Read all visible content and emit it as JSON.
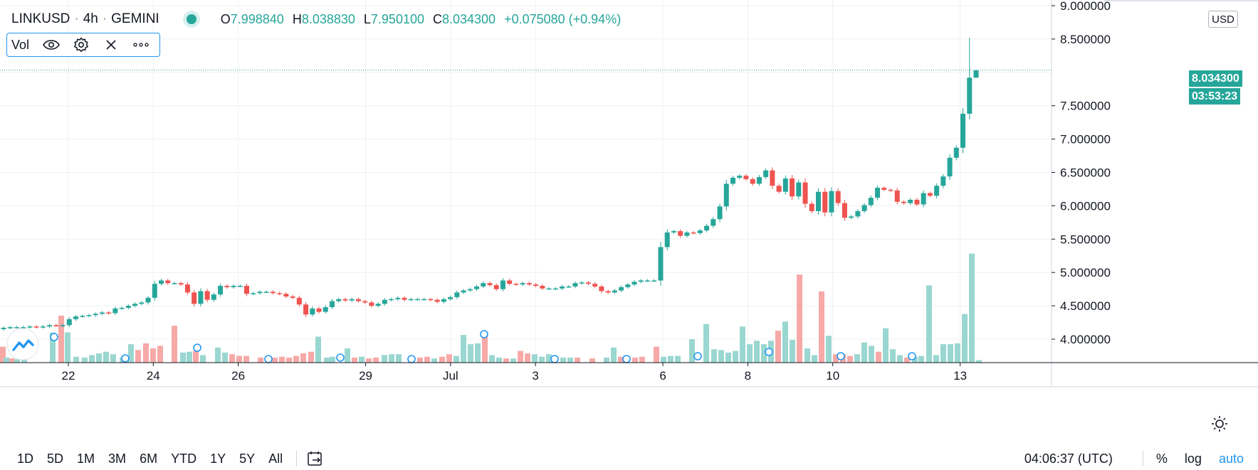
{
  "header": {
    "symbol": "LINKUSD",
    "interval": "4h",
    "exchange": "GEMINI",
    "separator": "·",
    "ohlc": {
      "open_label": "O",
      "open": "7.998840",
      "high_label": "H",
      "high": "8.038830",
      "low_label": "L",
      "low": "7.950100",
      "close_label": "C",
      "close": "8.034300",
      "change": "+0.075080 (+0.94%)"
    }
  },
  "volume_legend": {
    "label": "Vol",
    "icons": [
      "eye-icon",
      "gear-icon",
      "close-icon",
      "more-icon"
    ]
  },
  "price_axis": {
    "currency": "USD",
    "current_price": "8.034300",
    "countdown": "03:53:23",
    "ticks": [
      "4.000000",
      "4.500000",
      "5.000000",
      "5.500000",
      "6.000000",
      "6.500000",
      "7.000000",
      "7.500000",
      "8.500000",
      "9.000000"
    ]
  },
  "time_axis": {
    "labels": [
      "22",
      "24",
      "26",
      "29",
      "Jul",
      "3",
      "6",
      "8",
      "10",
      "13"
    ]
  },
  "bottom_bar": {
    "ranges": [
      "1D",
      "5D",
      "1M",
      "3M",
      "6M",
      "YTD",
      "1Y",
      "5Y",
      "All"
    ],
    "clock": "04:06:37 (UTC)",
    "percent_label": "%",
    "log_label": "log",
    "auto_label": "auto"
  },
  "colors": {
    "up": "#26a69a",
    "down": "#ef5350",
    "vol_up": "#9ad7d1",
    "vol_down": "#f7a9a7",
    "grid": "#eef0f4",
    "accent": "#2196f3"
  },
  "chart_data": {
    "type": "candlestick",
    "symbol": "LINKUSD",
    "interval": "4h",
    "ylim": [
      3.72,
      9.05
    ],
    "x_start": "2020-06-21",
    "grid": true,
    "x_ticks": [
      {
        "label": "22",
        "date": "2020-06-22"
      },
      {
        "label": "24",
        "date": "2020-06-24"
      },
      {
        "label": "26",
        "date": "2020-06-26"
      },
      {
        "label": "29",
        "date": "2020-06-29"
      },
      {
        "label": "Jul",
        "date": "2020-07-01"
      },
      {
        "label": "3",
        "date": "2020-07-03"
      },
      {
        "label": "6",
        "date": "2020-07-06"
      },
      {
        "label": "8",
        "date": "2020-07-08"
      },
      {
        "label": "10",
        "date": "2020-07-10"
      },
      {
        "label": "13",
        "date": "2020-07-13"
      }
    ],
    "y_ticks": [
      4.0,
      4.5,
      5.0,
      5.5,
      6.0,
      6.5,
      7.0,
      7.5,
      8.5,
      9.0
    ],
    "current_price": 8.0343,
    "close": [
      4.17,
      4.18,
      4.18,
      4.18,
      4.19,
      4.18,
      4.19,
      4.21,
      4.2,
      4.21,
      4.3,
      4.34,
      4.35,
      4.36,
      4.38,
      4.4,
      4.39,
      4.46,
      4.47,
      4.5,
      4.53,
      4.55,
      4.62,
      4.83,
      4.88,
      4.84,
      4.84,
      4.82,
      4.7,
      4.53,
      4.72,
      4.59,
      4.67,
      4.8,
      4.78,
      4.8,
      4.8,
      4.68,
      4.69,
      4.71,
      4.71,
      4.69,
      4.68,
      4.64,
      4.62,
      4.52,
      4.37,
      4.46,
      4.41,
      4.48,
      4.57,
      4.6,
      4.58,
      4.6,
      4.57,
      4.55,
      4.5,
      4.53,
      4.59,
      4.6,
      4.62,
      4.59,
      4.6,
      4.6,
      4.6,
      4.59,
      4.56,
      4.6,
      4.63,
      4.7,
      4.73,
      4.75,
      4.79,
      4.84,
      4.81,
      4.75,
      4.88,
      4.83,
      4.82,
      4.84,
      4.82,
      4.8,
      4.76,
      4.76,
      4.76,
      4.79,
      4.79,
      4.84,
      4.85,
      4.83,
      4.79,
      4.72,
      4.7,
      4.73,
      4.78,
      4.82,
      4.86,
      4.88,
      4.88,
      4.88,
      5.38,
      5.6,
      5.62,
      5.55,
      5.6,
      5.59,
      5.63,
      5.7,
      5.8,
      5.99,
      6.33,
      6.42,
      6.45,
      6.4,
      6.33,
      6.43,
      6.53,
      6.3,
      6.21,
      6.41,
      6.14,
      6.35,
      6.03,
      5.92,
      6.21,
      5.9,
      6.22,
      6.04,
      5.82,
      5.84,
      5.92,
      6.01,
      6.12,
      6.27,
      6.24,
      6.23,
      6.06,
      6.04,
      6.09,
      6.02,
      6.19,
      6.15,
      6.3,
      6.44,
      6.72,
      6.87,
      7.38,
      7.92,
      8.03
    ],
    "volume_bars": [
      {
        "x": 0,
        "v": 0.19,
        "d": "down"
      },
      {
        "x": 5,
        "v": 0.06,
        "d": "up"
      },
      {
        "x": 13,
        "v": 0.05,
        "d": "down"
      },
      {
        "x": 20,
        "v": 0.04,
        "d": "up"
      },
      {
        "x": 30,
        "v": 0.06,
        "d": "up"
      },
      {
        "x": 70,
        "v": 0.36,
        "d": "up"
      },
      {
        "x": 82,
        "v": 0.56,
        "d": "down"
      },
      {
        "x": 91,
        "v": 0.36,
        "d": "up"
      },
      {
        "x": 103,
        "v": 0.07,
        "d": "up"
      },
      {
        "x": 115,
        "v": 0.06,
        "d": "up"
      },
      {
        "x": 125,
        "v": 0.09,
        "d": "up"
      },
      {
        "x": 135,
        "v": 0.11,
        "d": "up"
      },
      {
        "x": 145,
        "v": 0.13,
        "d": "up"
      },
      {
        "x": 155,
        "v": 0.1,
        "d": "up"
      },
      {
        "x": 168,
        "v": 0.06,
        "d": "up"
      },
      {
        "x": 180,
        "v": 0.22,
        "d": "up"
      },
      {
        "x": 190,
        "v": 0.15,
        "d": "down"
      },
      {
        "x": 201,
        "v": 0.23,
        "d": "down"
      },
      {
        "x": 211,
        "v": 0.17,
        "d": "down"
      },
      {
        "x": 221,
        "v": 0.2,
        "d": "down"
      },
      {
        "x": 241,
        "v": 0.44,
        "d": "down"
      },
      {
        "x": 253,
        "v": 0.12,
        "d": "up"
      },
      {
        "x": 262,
        "v": 0.13,
        "d": "up"
      },
      {
        "x": 271,
        "v": 0.14,
        "d": "down"
      },
      {
        "x": 281,
        "v": 0.09,
        "d": "up"
      },
      {
        "x": 302,
        "v": 0.18,
        "d": "up"
      },
      {
        "x": 312,
        "v": 0.12,
        "d": "up"
      },
      {
        "x": 322,
        "v": 0.1,
        "d": "down"
      },
      {
        "x": 332,
        "v": 0.08,
        "d": "down"
      },
      {
        "x": 342,
        "v": 0.08,
        "d": "down"
      },
      {
        "x": 362,
        "v": 0.06,
        "d": "down"
      },
      {
        "x": 382,
        "v": 0.06,
        "d": "down"
      },
      {
        "x": 392,
        "v": 0.07,
        "d": "down"
      },
      {
        "x": 402,
        "v": 0.06,
        "d": "down"
      },
      {
        "x": 412,
        "v": 0.08,
        "d": "down"
      },
      {
        "x": 422,
        "v": 0.11,
        "d": "down"
      },
      {
        "x": 433,
        "v": 0.13,
        "d": "down"
      },
      {
        "x": 443,
        "v": 0.31,
        "d": "up"
      },
      {
        "x": 455,
        "v": 0.06,
        "d": "up"
      },
      {
        "x": 463,
        "v": 0.07,
        "d": "up"
      },
      {
        "x": 484,
        "v": 0.17,
        "d": "up"
      },
      {
        "x": 494,
        "v": 0.06,
        "d": "down"
      },
      {
        "x": 504,
        "v": 0.07,
        "d": "up"
      },
      {
        "x": 514,
        "v": 0.05,
        "d": "down"
      },
      {
        "x": 524,
        "v": 0.06,
        "d": "down"
      },
      {
        "x": 536,
        "v": 0.09,
        "d": "up"
      },
      {
        "x": 546,
        "v": 0.1,
        "d": "up"
      },
      {
        "x": 556,
        "v": 0.1,
        "d": "up"
      },
      {
        "x": 586,
        "v": 0.06,
        "d": "down"
      },
      {
        "x": 596,
        "v": 0.07,
        "d": "down"
      },
      {
        "x": 606,
        "v": 0.05,
        "d": "up"
      },
      {
        "x": 617,
        "v": 0.07,
        "d": "down"
      },
      {
        "x": 627,
        "v": 0.1,
        "d": "down"
      },
      {
        "x": 637,
        "v": 0.08,
        "d": "up"
      },
      {
        "x": 647,
        "v": 0.33,
        "d": "up"
      },
      {
        "x": 657,
        "v": 0.22,
        "d": "up"
      },
      {
        "x": 667,
        "v": 0.23,
        "d": "up"
      },
      {
        "x": 677,
        "v": 0.36,
        "d": "down"
      },
      {
        "x": 687,
        "v": 0.09,
        "d": "up"
      },
      {
        "x": 697,
        "v": 0.06,
        "d": "up"
      },
      {
        "x": 707,
        "v": 0.05,
        "d": "down"
      },
      {
        "x": 717,
        "v": 0.05,
        "d": "up"
      },
      {
        "x": 727,
        "v": 0.14,
        "d": "down"
      },
      {
        "x": 737,
        "v": 0.11,
        "d": "down"
      },
      {
        "x": 747,
        "v": 0.1,
        "d": "up"
      },
      {
        "x": 757,
        "v": 0.07,
        "d": "up"
      },
      {
        "x": 767,
        "v": 0.1,
        "d": "up"
      },
      {
        "x": 787,
        "v": 0.06,
        "d": "up"
      },
      {
        "x": 797,
        "v": 0.06,
        "d": "up"
      },
      {
        "x": 807,
        "v": 0.06,
        "d": "down"
      },
      {
        "x": 828,
        "v": 0.05,
        "d": "down"
      },
      {
        "x": 848,
        "v": 0.06,
        "d": "up"
      },
      {
        "x": 858,
        "v": 0.18,
        "d": "up"
      },
      {
        "x": 868,
        "v": 0.07,
        "d": "down"
      },
      {
        "x": 888,
        "v": 0.06,
        "d": "down"
      },
      {
        "x": 898,
        "v": 0.07,
        "d": "down"
      },
      {
        "x": 918,
        "v": 0.19,
        "d": "down"
      },
      {
        "x": 928,
        "v": 0.07,
        "d": "up"
      },
      {
        "x": 938,
        "v": 0.08,
        "d": "up"
      },
      {
        "x": 948,
        "v": 0.08,
        "d": "up"
      },
      {
        "x": 968,
        "v": 0.28,
        "d": "up"
      },
      {
        "x": 988,
        "v": 0.46,
        "d": "up"
      },
      {
        "x": 999,
        "v": 0.16,
        "d": "up"
      },
      {
        "x": 1009,
        "v": 0.15,
        "d": "up"
      },
      {
        "x": 1019,
        "v": 0.12,
        "d": "up"
      },
      {
        "x": 1029,
        "v": 0.14,
        "d": "up"
      },
      {
        "x": 1039,
        "v": 0.43,
        "d": "up"
      },
      {
        "x": 1049,
        "v": 0.22,
        "d": "up"
      },
      {
        "x": 1059,
        "v": 0.26,
        "d": "up"
      },
      {
        "x": 1069,
        "v": 0.22,
        "d": "up"
      },
      {
        "x": 1079,
        "v": 0.26,
        "d": "up"
      },
      {
        "x": 1089,
        "v": 0.38,
        "d": "down"
      },
      {
        "x": 1099,
        "v": 0.49,
        "d": "up"
      },
      {
        "x": 1109,
        "v": 0.27,
        "d": "up"
      },
      {
        "x": 1119,
        "v": 1.05,
        "d": "down"
      },
      {
        "x": 1130,
        "v": 0.17,
        "d": "up"
      },
      {
        "x": 1140,
        "v": 0.09,
        "d": "up"
      },
      {
        "x": 1150,
        "v": 0.85,
        "d": "down"
      },
      {
        "x": 1160,
        "v": 0.32,
        "d": "up"
      },
      {
        "x": 1170,
        "v": 0.1,
        "d": "down"
      },
      {
        "x": 1180,
        "v": 0.1,
        "d": "down"
      },
      {
        "x": 1190,
        "v": 0.08,
        "d": "down"
      },
      {
        "x": 1200,
        "v": 0.1,
        "d": "up"
      },
      {
        "x": 1210,
        "v": 0.24,
        "d": "up"
      },
      {
        "x": 1220,
        "v": 0.2,
        "d": "up"
      },
      {
        "x": 1230,
        "v": 0.13,
        "d": "down"
      },
      {
        "x": 1240,
        "v": 0.41,
        "d": "up"
      },
      {
        "x": 1250,
        "v": 0.16,
        "d": "up"
      },
      {
        "x": 1260,
        "v": 0.09,
        "d": "up"
      },
      {
        "x": 1270,
        "v": 0.06,
        "d": "down"
      },
      {
        "x": 1281,
        "v": 0.07,
        "d": "up"
      },
      {
        "x": 1290,
        "v": 0.08,
        "d": "up"
      },
      {
        "x": 1301,
        "v": 0.92,
        "d": "up"
      },
      {
        "x": 1311,
        "v": 0.09,
        "d": "up"
      },
      {
        "x": 1321,
        "v": 0.22,
        "d": "up"
      },
      {
        "x": 1331,
        "v": 0.22,
        "d": "up"
      },
      {
        "x": 1341,
        "v": 0.23,
        "d": "up"
      },
      {
        "x": 1351,
        "v": 0.58,
        "d": "up"
      },
      {
        "x": 1361,
        "v": 1.3,
        "d": "up"
      },
      {
        "x": 1371,
        "v": 0.03,
        "d": "up"
      }
    ],
    "event_markers_x": [
      76,
      176,
      277,
      377,
      478,
      578,
      680,
      779,
      880,
      980,
      1080,
      1181,
      1281
    ]
  }
}
